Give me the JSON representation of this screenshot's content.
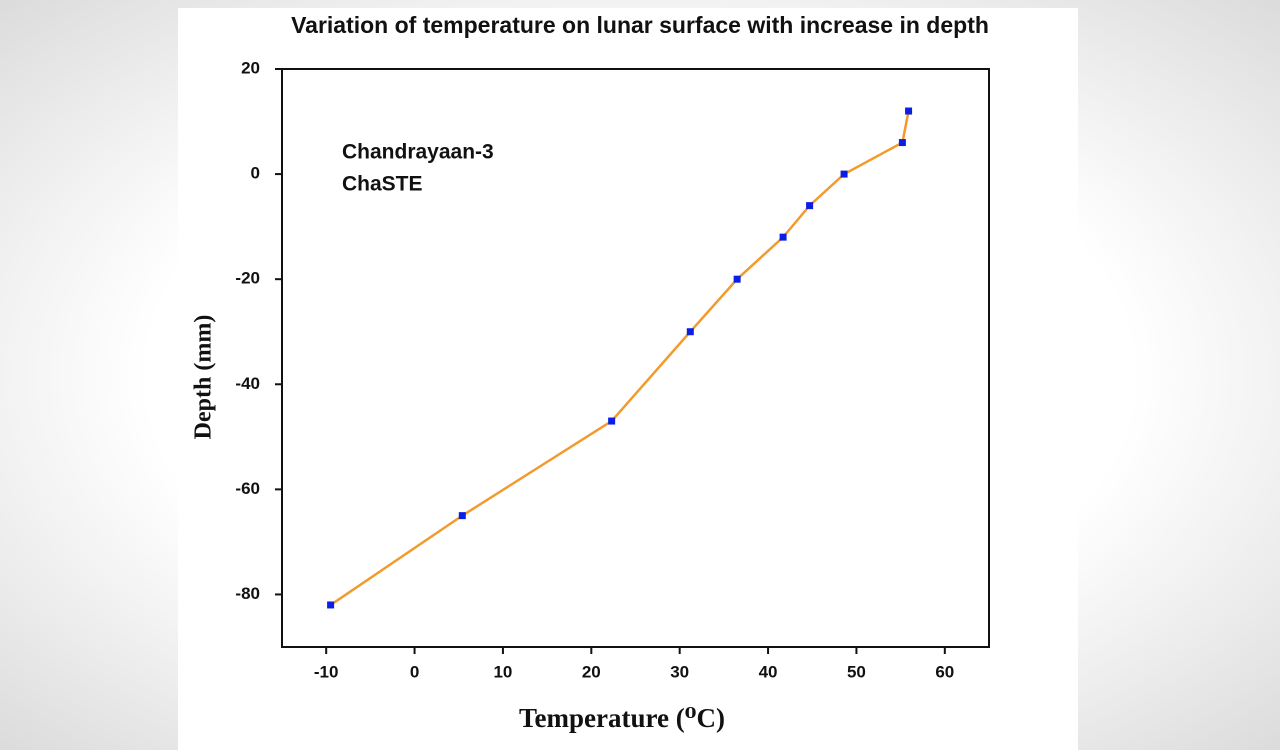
{
  "chart_data": {
    "type": "line",
    "title": "Variation of temperature on lunar surface with increase in depth",
    "xlabel": "Temperature (⁰C)",
    "ylabel": "Depth (mm)",
    "annotations": [
      "Chandrayaan-3",
      "ChaSTE"
    ],
    "x": [
      -9.5,
      5.4,
      22.3,
      31.2,
      36.5,
      41.7,
      44.7,
      48.6,
      55.2,
      55.9
    ],
    "series": [
      {
        "color": "#f39a2c",
        "marker_color": "#0a1ee6",
        "values": [
          -82,
          -65,
          -47,
          -30,
          -20,
          -12,
          -6,
          0,
          6,
          12
        ]
      }
    ],
    "xlim": [
      -15,
      65
    ],
    "xticks": [
      -10,
      0,
      10,
      20,
      30,
      40,
      50,
      60
    ],
    "ylim": [
      -90,
      20
    ],
    "yticks": [
      -80,
      -60,
      -40,
      -20,
      0,
      20
    ],
    "grid": false
  }
}
